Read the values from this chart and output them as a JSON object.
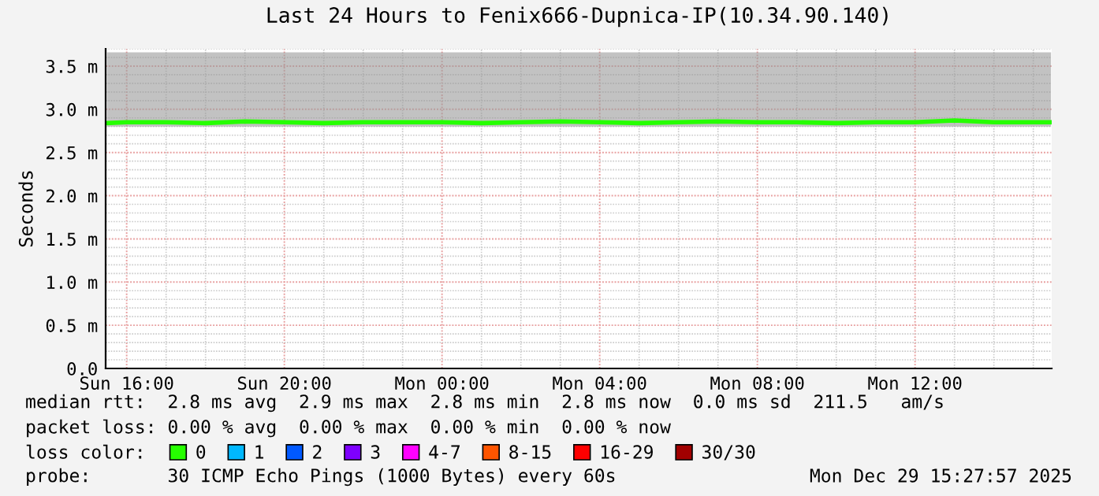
{
  "chart_data": {
    "type": "line",
    "title": "Last 24 Hours to Fenix666-Dupnica-IP(10.34.90.140)",
    "ylabel": "Seconds",
    "x": [
      "2025-12-28T15:30",
      "2025-12-28T16:00",
      "2025-12-28T17:00",
      "2025-12-28T18:00",
      "2025-12-28T19:00",
      "2025-12-28T20:00",
      "2025-12-28T21:00",
      "2025-12-28T22:00",
      "2025-12-28T23:00",
      "2025-12-29T00:00",
      "2025-12-29T01:00",
      "2025-12-29T02:00",
      "2025-12-29T03:00",
      "2025-12-29T04:00",
      "2025-12-29T05:00",
      "2025-12-29T06:00",
      "2025-12-29T07:00",
      "2025-12-29T08:00",
      "2025-12-29T09:00",
      "2025-12-29T10:00",
      "2025-12-29T11:00",
      "2025-12-29T12:00",
      "2025-12-29T13:00",
      "2025-12-29T14:00",
      "2025-12-29T15:00",
      "2025-12-29T15:27"
    ],
    "series": [
      {
        "name": "0",
        "color": "#26ff00",
        "values": [
          2.84,
          2.85,
          2.85,
          2.84,
          2.86,
          2.85,
          2.84,
          2.85,
          2.85,
          2.85,
          2.84,
          2.85,
          2.86,
          2.85,
          2.84,
          2.85,
          2.86,
          2.85,
          2.85,
          2.84,
          2.85,
          2.85,
          2.87,
          2.85,
          2.85,
          2.85
        ],
        "lower": [
          2.8,
          2.8,
          2.8,
          2.8,
          2.8,
          2.8,
          2.8,
          2.8,
          2.8,
          2.8,
          2.8,
          2.8,
          2.8,
          2.8,
          2.8,
          2.8,
          2.8,
          2.8,
          2.8,
          2.8,
          2.8,
          2.8,
          2.8,
          2.8,
          2.8,
          2.8
        ],
        "upper": [
          3.66,
          3.66,
          3.66,
          3.66,
          3.66,
          3.66,
          3.66,
          3.66,
          3.66,
          3.66,
          3.66,
          3.66,
          3.66,
          3.66,
          3.66,
          3.66,
          3.66,
          3.66,
          3.66,
          3.66,
          3.66,
          3.66,
          3.66,
          3.66,
          3.66,
          3.66
        ]
      },
      {
        "name": "1",
        "color": "#00b8ff",
        "values": [
          null,
          null,
          null,
          null,
          null,
          null,
          null,
          null,
          null,
          null,
          null,
          null,
          null,
          null,
          null,
          null,
          null,
          null,
          null,
          null,
          null,
          null,
          null,
          null,
          null,
          null
        ]
      },
      {
        "name": "2",
        "color": "#0059ff",
        "values": [
          null,
          null,
          null,
          null,
          null,
          null,
          null,
          null,
          null,
          null,
          null,
          null,
          null,
          null,
          null,
          null,
          null,
          null,
          null,
          null,
          null,
          null,
          null,
          null,
          null,
          null
        ]
      },
      {
        "name": "3",
        "color": "#7e00ff",
        "values": [
          null,
          null,
          null,
          null,
          null,
          null,
          null,
          null,
          null,
          null,
          null,
          null,
          null,
          null,
          null,
          null,
          null,
          null,
          null,
          null,
          null,
          null,
          null,
          null,
          null,
          null
        ]
      },
      {
        "name": "4-7",
        "color": "#ff00ff",
        "values": [
          null,
          null,
          null,
          null,
          null,
          null,
          null,
          null,
          null,
          null,
          null,
          null,
          null,
          null,
          null,
          null,
          null,
          null,
          null,
          null,
          null,
          null,
          null,
          null,
          null,
          null
        ]
      },
      {
        "name": "8-15",
        "color": "#ff5500",
        "values": [
          null,
          null,
          null,
          null,
          null,
          null,
          null,
          null,
          null,
          null,
          null,
          null,
          null,
          null,
          null,
          null,
          null,
          null,
          null,
          null,
          null,
          null,
          null,
          null,
          null,
          null
        ]
      },
      {
        "name": "16-29",
        "color": "#ff0000",
        "values": [
          null,
          null,
          null,
          null,
          null,
          null,
          null,
          null,
          null,
          null,
          null,
          null,
          null,
          null,
          null,
          null,
          null,
          null,
          null,
          null,
          null,
          null,
          null,
          null,
          null,
          null
        ]
      },
      {
        "name": "30/30",
        "color": "#a10000",
        "values": [
          null,
          null,
          null,
          null,
          null,
          null,
          null,
          null,
          null,
          null,
          null,
          null,
          null,
          null,
          null,
          null,
          null,
          null,
          null,
          null,
          null,
          null,
          null,
          null,
          null,
          null
        ]
      }
    ],
    "legend": "bottom",
    "legend_title": "loss color:",
    "grid": true,
    "xlim": [
      "2025-12-28T15:28",
      "2025-12-29T15:28"
    ],
    "xticks": [
      {
        "value": "2025-12-28T16:00",
        "label": "Sun 16:00"
      },
      {
        "value": "2025-12-28T20:00",
        "label": "Sun 20:00"
      },
      {
        "value": "2025-12-29T00:00",
        "label": "Mon 00:00"
      },
      {
        "value": "2025-12-29T04:00",
        "label": "Mon 04:00"
      },
      {
        "value": "2025-12-29T08:00",
        "label": "Mon 08:00"
      },
      {
        "value": "2025-12-29T12:00",
        "label": "Mon 12:00"
      }
    ],
    "ylim": [
      0,
      3.7
    ],
    "yticks": [
      {
        "value": 0,
        "label": "0.0"
      },
      {
        "value": 0.5,
        "label": "0.5 m"
      },
      {
        "value": 1.0,
        "label": "1.0 m"
      },
      {
        "value": 1.5,
        "label": "1.5 m"
      },
      {
        "value": 2.0,
        "label": "2.0 m"
      },
      {
        "value": 2.5,
        "label": "2.5 m"
      },
      {
        "value": 3.0,
        "label": "3.0 m"
      },
      {
        "value": 3.5,
        "label": "3.5 m"
      }
    ],
    "annotations": [
      "median rtt:  2.8 ms avg  2.9 ms max  2.8 ms min  2.8 ms now  0.0 ms sd  211.5   am/s",
      "packet loss: 0.00 % avg  0.00 % max  0.00 % min  0.00 % now",
      "probe:       30 ICMP Echo Pings (1000 Bytes) every 60s",
      "Mon Dec 29 15:27:57 2025"
    ]
  }
}
